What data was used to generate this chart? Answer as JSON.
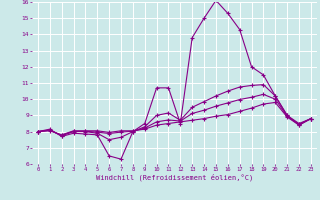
{
  "xlabel": "Windchill (Refroidissement éolien,°C)",
  "xlim": [
    -0.5,
    23.5
  ],
  "ylim": [
    6,
    16
  ],
  "xticks": [
    0,
    1,
    2,
    3,
    4,
    5,
    6,
    7,
    8,
    9,
    10,
    11,
    12,
    13,
    14,
    15,
    16,
    17,
    18,
    19,
    20,
    21,
    22,
    23
  ],
  "yticks": [
    6,
    7,
    8,
    9,
    10,
    11,
    12,
    13,
    14,
    15,
    16
  ],
  "bg_color": "#cce9e9",
  "line_color": "#880088",
  "grid_color": "#ffffff",
  "lines": [
    {
      "x": [
        0,
        1,
        2,
        3,
        4,
        5,
        6,
        7,
        8,
        9,
        10,
        11,
        12,
        13,
        14,
        15,
        16,
        17,
        18,
        19,
        20,
        21,
        22,
        23
      ],
      "y": [
        8.0,
        8.15,
        7.7,
        7.9,
        7.85,
        7.8,
        6.5,
        6.3,
        8.0,
        8.5,
        10.7,
        10.7,
        8.5,
        13.8,
        15.0,
        16.1,
        15.3,
        14.3,
        12.0,
        11.5,
        10.2,
        9.0,
        8.4,
        8.8
      ]
    },
    {
      "x": [
        0,
        1,
        2,
        3,
        4,
        5,
        6,
        7,
        8,
        9,
        10,
        11,
        12,
        13,
        14,
        15,
        16,
        17,
        18,
        19,
        20,
        21,
        22,
        23
      ],
      "y": [
        8.0,
        8.1,
        7.75,
        8.0,
        8.0,
        7.9,
        7.5,
        7.65,
        8.0,
        8.3,
        9.0,
        9.15,
        8.7,
        9.5,
        9.85,
        10.2,
        10.5,
        10.75,
        10.85,
        10.9,
        10.2,
        9.0,
        8.5,
        8.8
      ]
    },
    {
      "x": [
        0,
        1,
        2,
        3,
        4,
        5,
        6,
        7,
        8,
        9,
        10,
        11,
        12,
        13,
        14,
        15,
        16,
        17,
        18,
        19,
        20,
        21,
        22,
        23
      ],
      "y": [
        8.0,
        8.05,
        7.8,
        8.05,
        8.05,
        8.05,
        7.95,
        8.05,
        8.05,
        8.15,
        8.4,
        8.5,
        8.6,
        8.7,
        8.8,
        8.95,
        9.05,
        9.25,
        9.45,
        9.7,
        9.8,
        8.9,
        8.4,
        8.8
      ]
    },
    {
      "x": [
        0,
        1,
        2,
        3,
        4,
        5,
        6,
        7,
        8,
        9,
        10,
        11,
        12,
        13,
        14,
        15,
        16,
        17,
        18,
        19,
        20,
        21,
        22,
        23
      ],
      "y": [
        8.0,
        8.08,
        7.77,
        8.02,
        8.02,
        7.97,
        7.88,
        7.97,
        8.02,
        8.22,
        8.6,
        8.72,
        8.65,
        9.12,
        9.32,
        9.57,
        9.77,
        9.98,
        10.12,
        10.3,
        10.0,
        8.95,
        8.45,
        8.8
      ]
    }
  ]
}
